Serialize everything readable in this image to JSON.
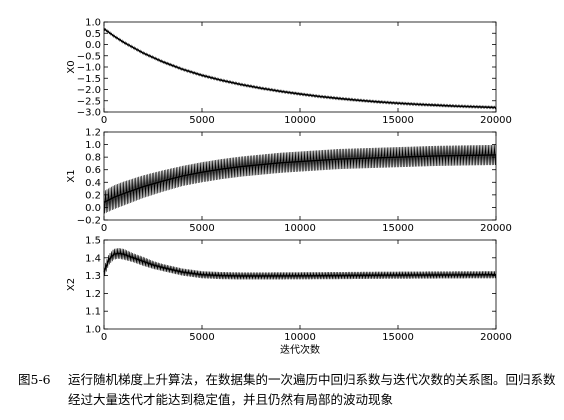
{
  "chart_data": [
    {
      "type": "line",
      "ylabel": "X0",
      "xlabel": "",
      "xlim": [
        0,
        20000
      ],
      "ylim": [
        -3.0,
        1.0
      ],
      "yticks": [
        1.0,
        0.5,
        0.0,
        -0.5,
        -1.0,
        -1.5,
        -2.0,
        -2.5,
        -3.0
      ],
      "yticklabels": [
        "1.0",
        "0.5",
        "0.0",
        "−0.5",
        "−1.0",
        "−1.5",
        "−2.0",
        "−2.5",
        "−3.0"
      ],
      "xticks": [
        0,
        5000,
        10000,
        15000,
        20000
      ],
      "xticklabels": [
        "0",
        "5000",
        "10000",
        "15000",
        "20000"
      ],
      "color": "#000000",
      "x": [
        0,
        500,
        1000,
        2000,
        3000,
        4000,
        5000,
        6000,
        7000,
        8000,
        9000,
        10000,
        11000,
        12000,
        13000,
        14000,
        15000,
        16000,
        17000,
        18000,
        19000,
        20000
      ],
      "y": [
        0.7,
        0.38,
        0.1,
        -0.38,
        -0.77,
        -1.1,
        -1.37,
        -1.59,
        -1.78,
        -1.94,
        -2.08,
        -2.2,
        -2.31,
        -2.4,
        -2.48,
        -2.55,
        -2.61,
        -2.66,
        -2.7,
        -2.74,
        -2.77,
        -2.8
      ],
      "band": [
        0.05,
        0.05,
        0.05,
        0.05,
        0.05,
        0.05,
        0.05,
        0.05,
        0.05,
        0.05,
        0.05,
        0.05,
        0.05,
        0.05,
        0.05,
        0.05,
        0.05,
        0.05,
        0.05,
        0.05,
        0.05,
        0.05
      ]
    },
    {
      "type": "line",
      "ylabel": "X1",
      "xlabel": "",
      "xlim": [
        0,
        20000
      ],
      "ylim": [
        -0.2,
        1.2
      ],
      "yticks": [
        1.2,
        1.0,
        0.8,
        0.6,
        0.4,
        0.2,
        0.0,
        -0.2
      ],
      "yticklabels": [
        "1.2",
        "1.0",
        "0.8",
        "0.6",
        "0.4",
        "0.2",
        "0.0",
        "−0.2"
      ],
      "xticks": [
        0,
        5000,
        10000,
        15000,
        20000
      ],
      "xticklabels": [
        "0",
        "5000",
        "10000",
        "15000",
        "20000"
      ],
      "color": "#000000",
      "x": [
        0,
        500,
        1000,
        2000,
        3000,
        4000,
        5000,
        6000,
        7000,
        8000,
        9000,
        10000,
        11000,
        12000,
        13000,
        14000,
        15000,
        16000,
        17000,
        18000,
        19000,
        20000
      ],
      "y": [
        0.08,
        0.16,
        0.22,
        0.33,
        0.42,
        0.5,
        0.56,
        0.61,
        0.65,
        0.68,
        0.71,
        0.73,
        0.75,
        0.77,
        0.78,
        0.79,
        0.8,
        0.81,
        0.82,
        0.825,
        0.83,
        0.835
      ],
      "band": [
        0.18,
        0.19,
        0.19,
        0.18,
        0.17,
        0.16,
        0.16,
        0.16,
        0.16,
        0.16,
        0.16,
        0.16,
        0.16,
        0.16,
        0.16,
        0.16,
        0.16,
        0.16,
        0.16,
        0.16,
        0.16,
        0.16
      ]
    },
    {
      "type": "line",
      "ylabel": "X2",
      "xlabel": "迭代次数",
      "xlim": [
        0,
        20000
      ],
      "ylim": [
        1.0,
        1.5
      ],
      "yticks": [
        1.5,
        1.4,
        1.3,
        1.2,
        1.1,
        1.0
      ],
      "yticklabels": [
        "1.5",
        "1.4",
        "1.3",
        "1.2",
        "1.1",
        "1.0"
      ],
      "xticks": [
        0,
        5000,
        10000,
        15000,
        20000
      ],
      "xticklabels": [
        "0",
        "5000",
        "10000",
        "15000",
        "20000"
      ],
      "color": "#000000",
      "x": [
        0,
        250,
        500,
        750,
        1000,
        1500,
        2000,
        2500,
        3000,
        4000,
        5000,
        6000,
        7000,
        8000,
        10000,
        12000,
        14000,
        16000,
        18000,
        20000
      ],
      "y": [
        1.32,
        1.39,
        1.42,
        1.425,
        1.42,
        1.4,
        1.38,
        1.36,
        1.345,
        1.32,
        1.305,
        1.3,
        1.298,
        1.298,
        1.299,
        1.3,
        1.302,
        1.303,
        1.304,
        1.305
      ],
      "band": [
        0.03,
        0.03,
        0.03,
        0.03,
        0.03,
        0.025,
        0.025,
        0.022,
        0.02,
        0.02,
        0.02,
        0.02,
        0.02,
        0.02,
        0.02,
        0.02,
        0.02,
        0.02,
        0.02,
        0.02
      ]
    }
  ],
  "caption": {
    "number": "图5-6",
    "text": "运行随机梯度上升算法，在数据集的一次遍历中回归系数与迭代次数的关系图。回归系数经过大量迭代才能达到稳定值，并且仍然有局部的波动现象"
  }
}
